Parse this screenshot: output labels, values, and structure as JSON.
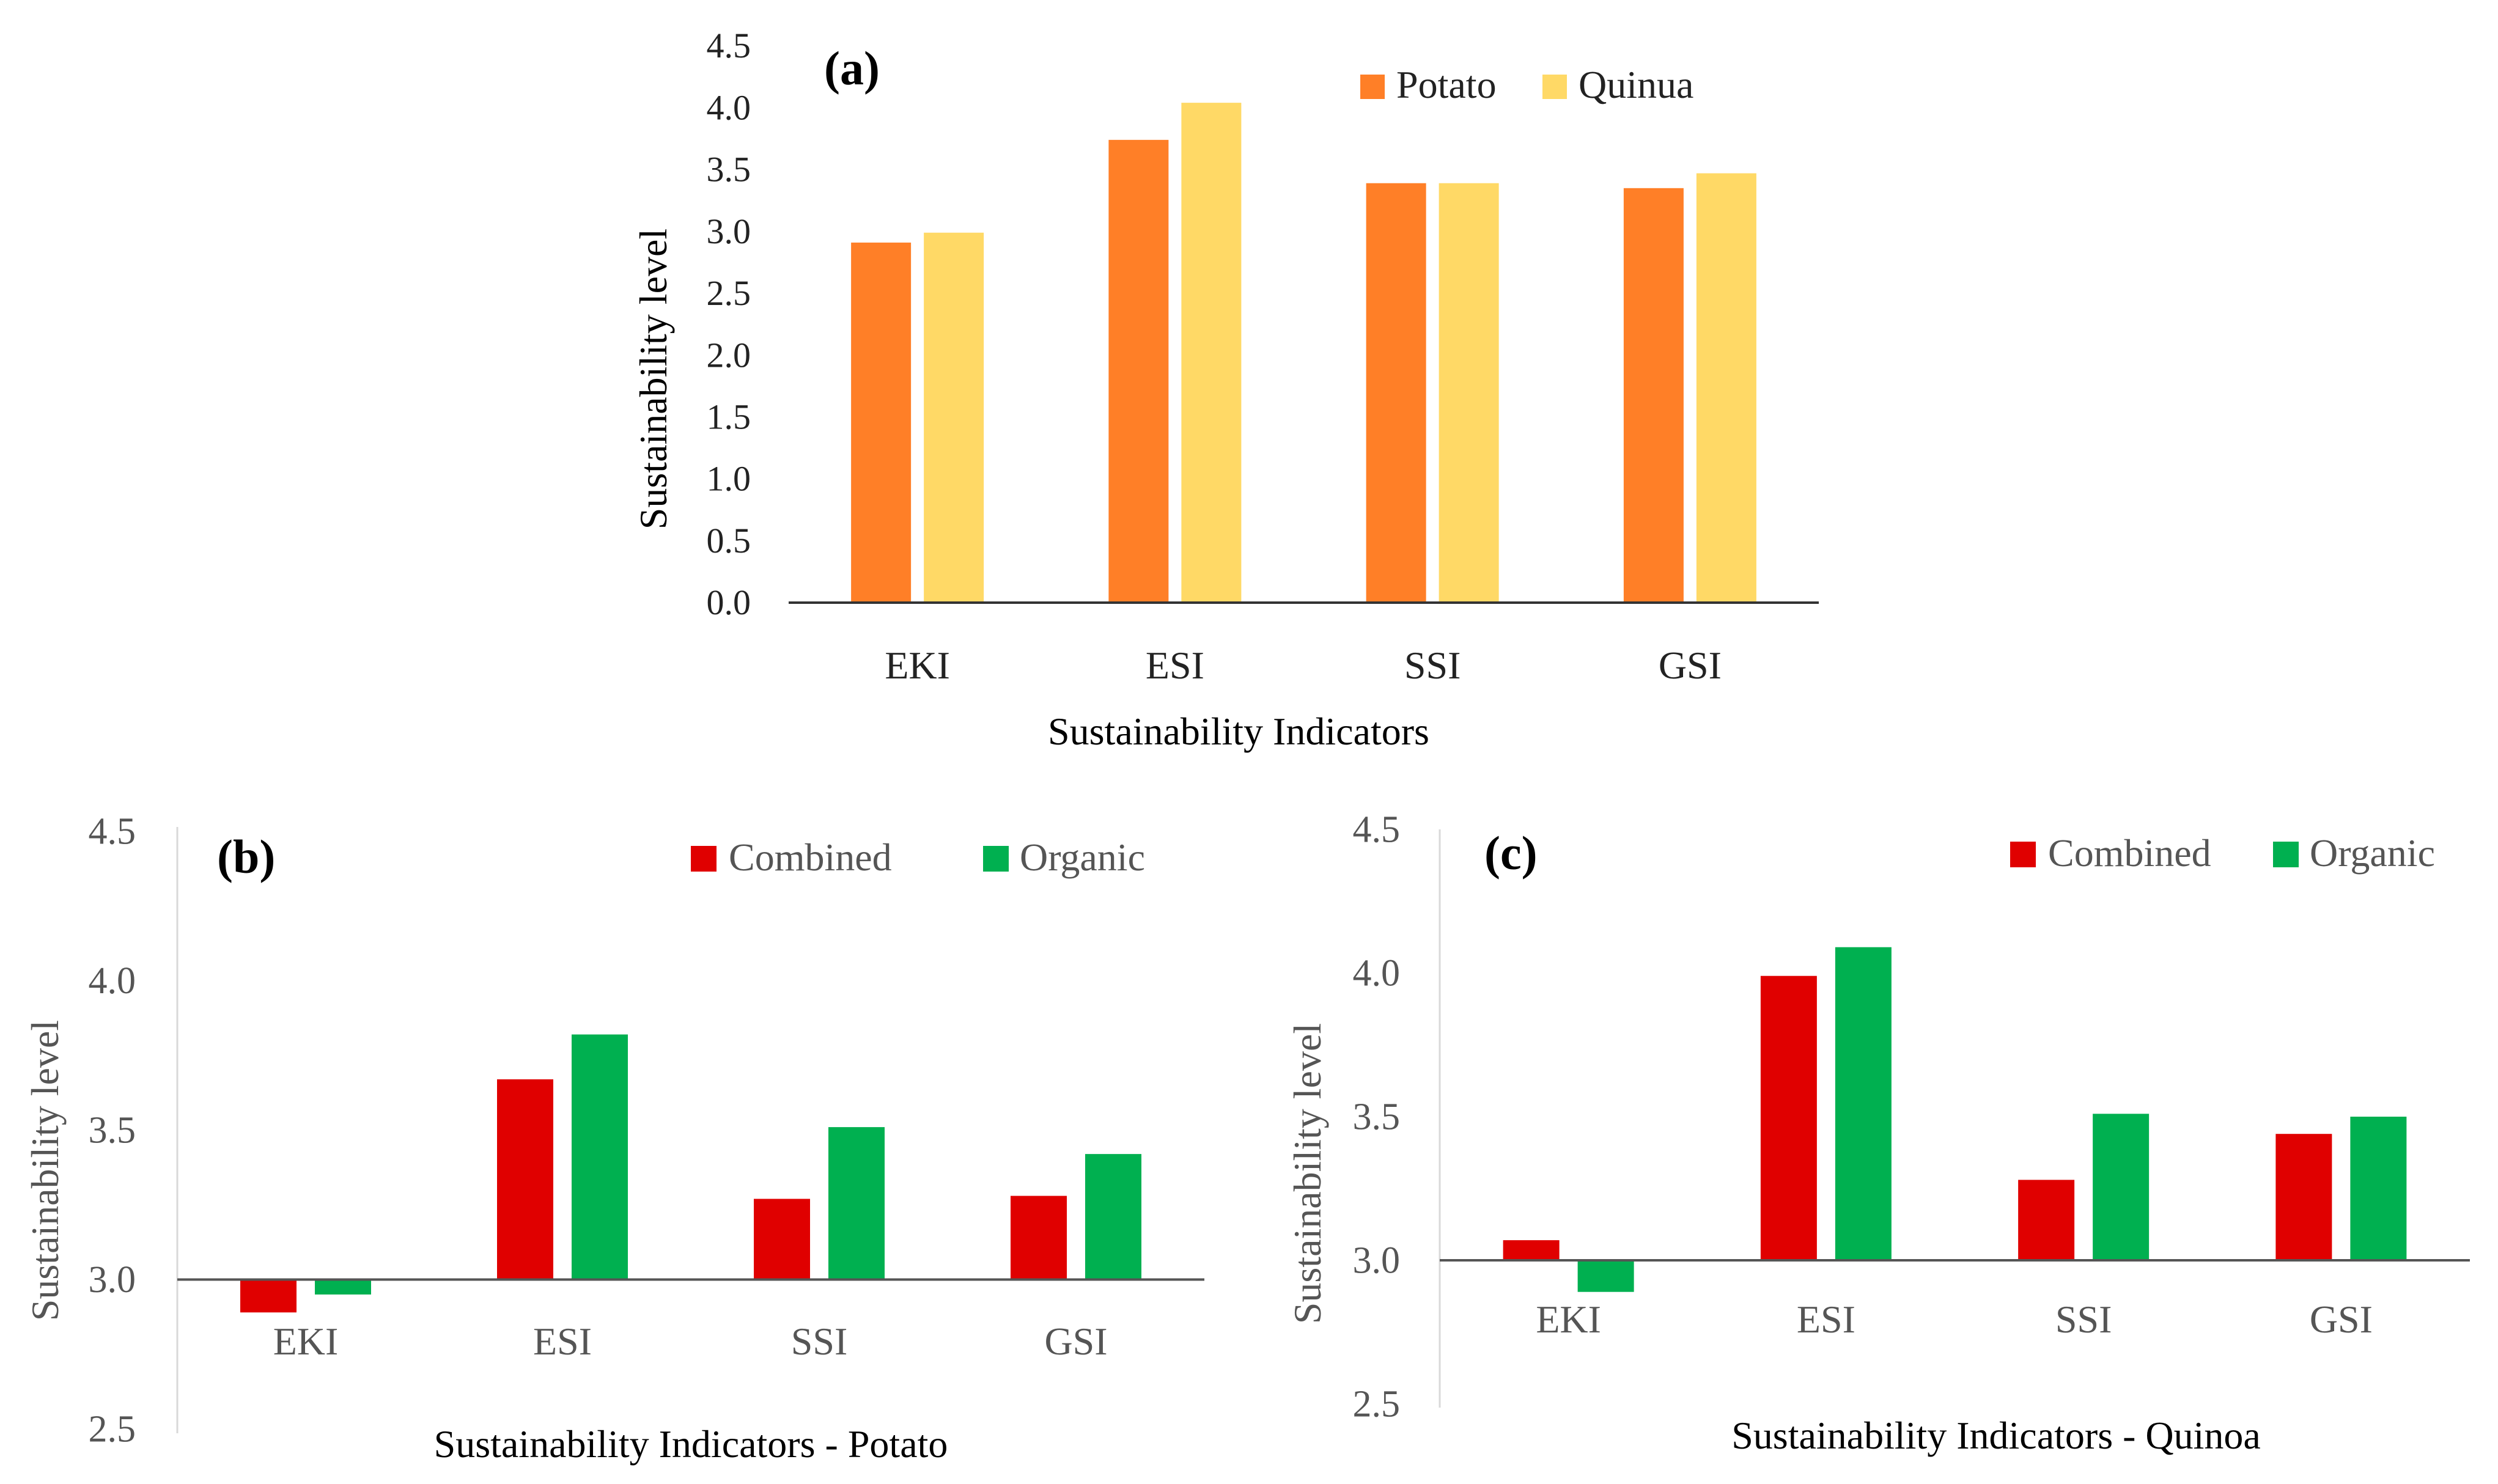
{
  "chart_data": [
    {
      "panel": "(a)",
      "type": "bar",
      "title": "",
      "xlabel": "Sustainability Indicators",
      "ylabel": "Sustainability level",
      "categories": [
        "EKI",
        "ESI",
        "SSI",
        "GSI"
      ],
      "ylim": [
        0,
        4.5
      ],
      "yticks": [
        "0.0",
        "0.5",
        "1.0",
        "1.5",
        "2.0",
        "2.5",
        "3.0",
        "3.5",
        "4.0",
        "4.5"
      ],
      "legend_position": "top-right",
      "series": [
        {
          "name": "Potato",
          "color": "#FF7F27",
          "values": [
            2.91,
            3.74,
            3.39,
            3.35
          ]
        },
        {
          "name": "Quinua",
          "color": "#FFD966",
          "values": [
            2.99,
            4.04,
            3.39,
            3.47
          ]
        }
      ]
    },
    {
      "panel": "(b)",
      "type": "bar",
      "title": "",
      "xlabel": "Sustainability Indicators - Potato",
      "ylabel": "Sustainability level",
      "categories": [
        "EKI",
        "ESI",
        "SSI",
        "GSI"
      ],
      "ylim": [
        2.5,
        4.5
      ],
      "baseline": 3.0,
      "yticks": [
        "2.5",
        "3.0",
        "3.5",
        "4.0",
        "4.5"
      ],
      "legend_position": "top-right",
      "series": [
        {
          "name": "Combined",
          "color": "#E00000",
          "values": [
            2.89,
            3.67,
            3.27,
            3.28
          ]
        },
        {
          "name": "Organic",
          "color": "#00B050",
          "values": [
            2.95,
            3.82,
            3.51,
            3.42
          ]
        }
      ]
    },
    {
      "panel": "(c)",
      "type": "bar",
      "title": "",
      "xlabel": "Sustainability Indicators - Quinoa",
      "ylabel": "Sustainability level",
      "categories": [
        "EKI",
        "ESI",
        "SSI",
        "GSI"
      ],
      "ylim": [
        2.5,
        4.5
      ],
      "baseline": 3.0,
      "yticks": [
        "2.5",
        "3.0",
        "3.5",
        "4.0",
        "4.5"
      ],
      "legend_position": "top-right",
      "series": [
        {
          "name": "Combined",
          "color": "#E00000",
          "values": [
            3.07,
            3.99,
            3.28,
            3.44
          ]
        },
        {
          "name": "Organic",
          "color": "#00B050",
          "values": [
            2.89,
            4.09,
            3.51,
            3.5
          ]
        }
      ]
    }
  ]
}
